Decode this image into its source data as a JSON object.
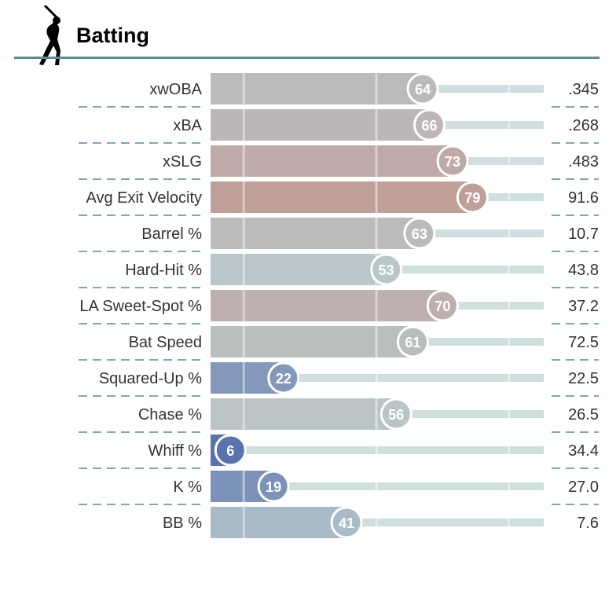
{
  "header": {
    "title": "Batting",
    "icon": "batter-silhouette-icon"
  },
  "chart_data": {
    "type": "bar",
    "orientation": "horizontal",
    "title": "Batting",
    "xlim": [
      0,
      100
    ],
    "value_kind": "percentile",
    "categories": [
      "xwOBA",
      "xBA",
      "xSLG",
      "Avg Exit Velocity",
      "Barrel %",
      "Hard-Hit %",
      "LA Sweet-Spot %",
      "Bat Speed",
      "Squared-Up %",
      "Chase %",
      "Whiff %",
      "K %",
      "BB %"
    ],
    "percentiles": [
      64,
      66,
      73,
      79,
      63,
      53,
      70,
      61,
      22,
      56,
      6,
      19,
      41
    ],
    "stat_values": [
      ".345",
      ".268",
      ".483",
      "91.6",
      "10.7",
      "43.8",
      "37.2",
      "72.5",
      "22.5",
      "26.5",
      "34.4",
      "27.0",
      "7.6"
    ],
    "reference_lines_percentile": [
      10,
      50,
      90
    ],
    "colors": {
      "low": "#3d5aa6",
      "mid": "#b9c9cc",
      "high": "#c9705f",
      "track": "#cfdedf",
      "divider": "#5a8c91",
      "text": "#333333"
    }
  }
}
